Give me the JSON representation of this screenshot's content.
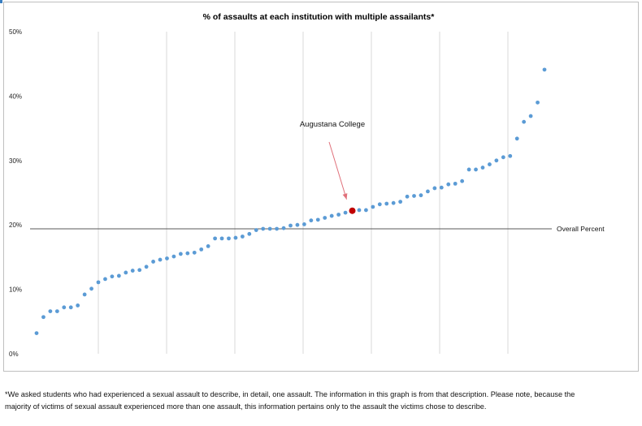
{
  "chart_data": {
    "type": "scatter",
    "title": "% of assaults at each institution with multiple assailants*",
    "xlabel": "",
    "ylabel": "",
    "ylim": [
      0,
      50
    ],
    "yticks": [
      "0%",
      "10%",
      "20%",
      "30%",
      "40%",
      "50%"
    ],
    "grid": true,
    "series": [
      {
        "values": [
          3.2,
          5.7,
          6.6,
          6.6,
          7.2,
          7.2,
          7.5,
          9.2,
          10.1,
          11.1,
          11.6,
          12.0,
          12.1,
          12.6,
          12.9,
          13.0,
          13.5,
          14.3,
          14.6,
          14.8,
          15.1,
          15.5,
          15.6,
          15.7,
          16.2,
          16.7,
          17.9,
          17.9,
          17.9,
          18.0,
          18.2,
          18.6,
          19.2,
          19.4,
          19.4,
          19.4,
          19.5,
          19.9,
          20.0,
          20.1,
          20.7,
          20.8,
          21.1,
          21.4,
          21.6,
          21.9,
          22.2,
          22.3,
          22.3,
          22.8,
          23.2,
          23.3,
          23.4,
          23.6,
          24.4,
          24.5,
          24.6,
          25.2,
          25.7,
          25.8,
          26.3,
          26.4,
          26.8,
          28.6,
          28.6,
          28.9,
          29.4,
          30.0,
          30.5,
          30.7,
          33.4,
          36.0,
          36.9,
          39.0,
          44.1
        ],
        "highlight_index": 46
      }
    ],
    "reference_line": {
      "value": 19.4,
      "label": "Overall Percent"
    },
    "annotation": {
      "label": "Augustana College"
    },
    "colors": {
      "point": "#5b9bd5",
      "highlight": "#c00000",
      "arrow": "#e0707a",
      "grid": "#d9d9d9",
      "refline": "#595959"
    }
  },
  "footnote": {
    "line1": "*We asked students who had experienced a sexual assault to describe, in detail, one assault. The information in this graph is from that description. Please note, because the",
    "line2": "majority of victims of sexual assault experienced more than one assault, this information pertains only to the assault the victims chose to describe."
  }
}
